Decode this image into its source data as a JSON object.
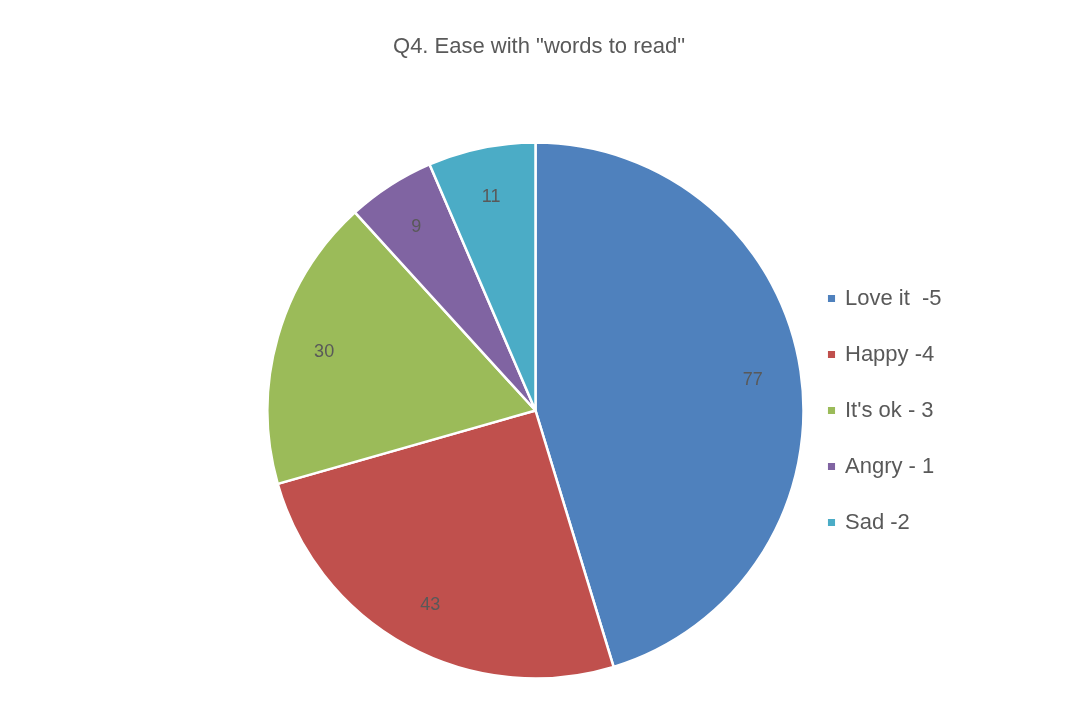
{
  "chart_data": {
    "type": "pie",
    "title": "Q4. Ease with \"words to read\"",
    "categories": [
      "Love it  -5",
      "Happy -4",
      "It's ok - 3",
      "Angry - 1",
      "Sad -2"
    ],
    "values": [
      77,
      43,
      30,
      9,
      11
    ],
    "colors": [
      "#4f81bd",
      "#c0504d",
      "#9bbb59",
      "#8064a2",
      "#4bacc6"
    ],
    "data_labels": true,
    "legend": "right"
  }
}
